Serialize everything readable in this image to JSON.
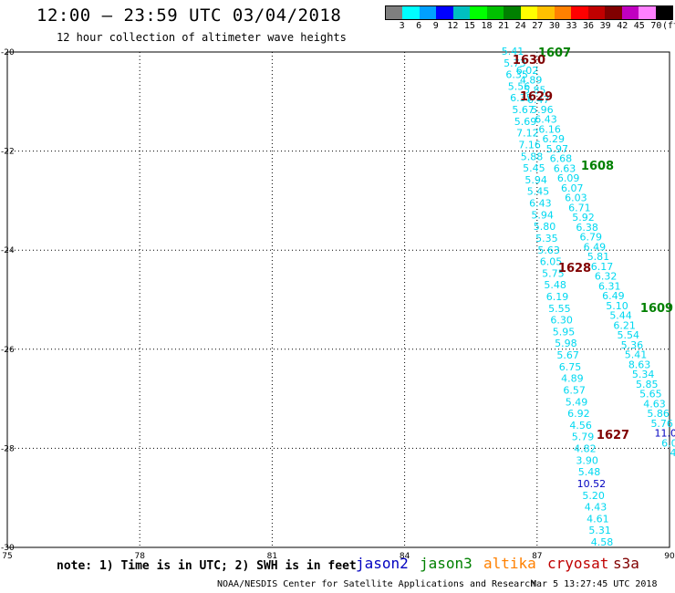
{
  "header": {
    "title": "12:00 – 23:59 UTC 03/04/2018",
    "subtitle": "12 hour collection of altimeter wave heights"
  },
  "legend": {
    "colors": [
      "#7f7f7f",
      "#00ffff",
      "#00a0ff",
      "#0000ff",
      "#00c0c0",
      "#00ff00",
      "#00c000",
      "#008000",
      "#ffff00",
      "#ffc000",
      "#ff8000",
      "#ff0000",
      "#c00000",
      "#800000",
      "#c000c0",
      "#ff80ff",
      "#000000"
    ],
    "labels": [
      "3",
      "6",
      "9",
      "12",
      "15",
      "18",
      "21",
      "24",
      "27",
      "30",
      "33",
      "36",
      "39",
      "42",
      "45",
      "70",
      "(ft)"
    ]
  },
  "axes": {
    "x_ticks": [
      "75",
      "78",
      "81",
      "84",
      "87",
      "90"
    ],
    "y_ticks": [
      "-20",
      "-22",
      "-24",
      "-26",
      "-28",
      "-30"
    ]
  },
  "swh_labels": {
    "track_a": [
      "5.41",
      "5.73",
      "6.35",
      "5.56",
      "6.35",
      "5.67",
      "5.69",
      "7.12",
      "7.16",
      "5.88",
      "5.45",
      "5.94",
      "5.45",
      "6.43",
      "5.94",
      "5.80",
      "5.35",
      "5.63",
      "6.05",
      "5.75",
      "5.48",
      "6.19",
      "5.55",
      "6.30",
      "5.95",
      "5.98",
      "5.67",
      "6.75",
      "4.89",
      "6.57",
      "5.49",
      "6.92",
      "4.56",
      "5.79",
      "4.82",
      "3.90",
      "5.48",
      "10.52",
      "5.20",
      "4.43",
      "4.61",
      "5.31",
      "4.58"
    ],
    "track_b": [
      "6.02",
      "4.89",
      "5.85",
      "6.47",
      "5.96",
      "6.43",
      "6.16",
      "6.29",
      "5.97",
      "6.68",
      "6.63",
      "6.09",
      "6.07",
      "6.03",
      "6.71",
      "5.92",
      "6.38",
      "6.79",
      "6.49",
      "5.81",
      "6.17",
      "6.32",
      "6.31",
      "6.49",
      "5.10",
      "5.44",
      "6.21",
      "5.54",
      "5.36",
      "5.41",
      "8.63",
      "5.34",
      "5.85",
      "5.65",
      "4.63",
      "5.86",
      "5.76",
      "11.0",
      "6.0",
      "4"
    ]
  },
  "pass_labels": [
    {
      "text": "1607",
      "color": "#008000"
    },
    {
      "text": "1630",
      "color": "#800000"
    },
    {
      "text": "1629",
      "color": "#800000"
    },
    {
      "text": "1608",
      "color": "#008000"
    },
    {
      "text": "1628",
      "color": "#800000"
    },
    {
      "text": "1609",
      "color": "#008000"
    },
    {
      "text": "1627",
      "color": "#800000"
    }
  ],
  "footer": {
    "note": "note: 1) Time is in UTC; 2) SWH is in feet",
    "satellites": [
      {
        "name": "jason2",
        "color": "#0000c0"
      },
      {
        "name": "jason3",
        "color": "#008000"
      },
      {
        "name": "altika",
        "color": "#ff8000"
      },
      {
        "name": "cryosat",
        "color": "#c00000"
      },
      {
        "name": "s3a",
        "color": "#800000"
      }
    ],
    "credit": "NOAA/NESDIS Center for Satellite Applications and Research",
    "timestamp": "Mar  5 13:27:45 UTC 2018"
  }
}
